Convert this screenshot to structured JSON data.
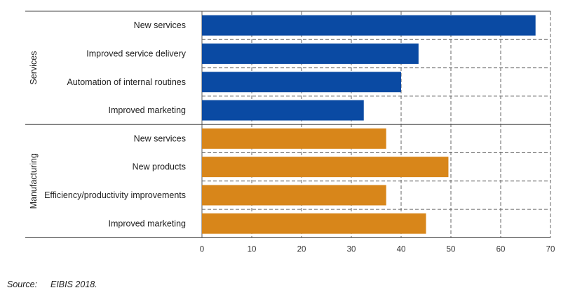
{
  "chart_data": {
    "type": "bar",
    "orientation": "horizontal",
    "title": "",
    "xlabel": "",
    "ylabel": "",
    "xlim": [
      0,
      70
    ],
    "x_ticks": [
      0,
      10,
      20,
      30,
      40,
      50,
      60,
      70
    ],
    "grid": true,
    "groups": [
      {
        "name": "Services",
        "color": "#0a4aa3",
        "categories": [
          "New services",
          "Improved service delivery",
          "Automation of internal routines",
          "Improved marketing"
        ],
        "values": [
          67,
          43.5,
          40,
          32.5
        ]
      },
      {
        "name": "Manufacturing",
        "color": "#d8861a",
        "categories": [
          "New services",
          "New products",
          "Efficiency/productivity improvements",
          "Improved marketing"
        ],
        "values": [
          37,
          49.5,
          37,
          45
        ]
      }
    ]
  },
  "source": {
    "label": "Source:",
    "text": "EIBIS 2018."
  }
}
